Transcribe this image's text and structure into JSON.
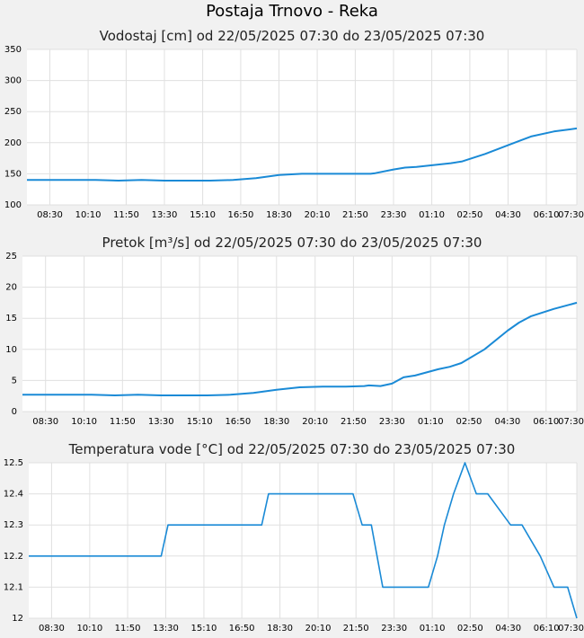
{
  "page": {
    "title": "Postaja Trnovo - Reka"
  },
  "x_ticks": [
    "08:30",
    "10:10",
    "11:50",
    "13:30",
    "15:10",
    "16:50",
    "18:30",
    "20:10",
    "21:50",
    "23:30",
    "01:10",
    "02:50",
    "04:30",
    "06:10",
    "07:30"
  ],
  "colors": {
    "line": "#1a8ad6",
    "grid": "#e0e0e0",
    "plot_bg": "#ffffff",
    "page_bg": "#f1f1f1"
  },
  "chart_data": [
    {
      "type": "line",
      "title": "Vodostaj [cm] od 22/05/2025 07:30 do 23/05/2025 07:30",
      "x_range": [
        0,
        24
      ],
      "ylim": [
        100,
        350
      ],
      "y_ticks": [
        "100",
        "150",
        "200",
        "250",
        "300",
        "350"
      ],
      "grid": true,
      "series": [
        {
          "x": [
            0,
            3,
            4,
            5,
            6,
            8,
            9,
            10,
            11,
            12,
            13,
            14,
            15,
            15.2,
            16,
            16.5,
            17,
            18,
            18.5,
            19,
            20,
            21,
            21.5,
            22,
            23,
            24
          ],
          "values": [
            140,
            140,
            139,
            140,
            139,
            139,
            140,
            143,
            148,
            150,
            150,
            150,
            150,
            151,
            157,
            160,
            161,
            165,
            167,
            170,
            182,
            196,
            203,
            210,
            218,
            223
          ]
        }
      ]
    },
    {
      "type": "line",
      "title": "Pretok [m³/s] od 22/05/2025 07:30 do 23/05/2025 07:30",
      "x_range": [
        0,
        24
      ],
      "ylim": [
        0,
        25
      ],
      "y_ticks": [
        "0",
        "5",
        "10",
        "15",
        "20",
        "25"
      ],
      "grid": true,
      "series": [
        {
          "x": [
            0,
            3,
            4,
            5,
            6,
            8,
            9,
            10,
            11,
            12,
            13,
            14,
            14.8,
            15,
            15.5,
            16,
            16.5,
            17,
            18,
            18.5,
            19,
            20,
            21,
            21.5,
            22,
            23,
            24
          ],
          "values": [
            2.7,
            2.7,
            2.6,
            2.7,
            2.6,
            2.6,
            2.7,
            3.0,
            3.5,
            3.9,
            4.0,
            4.0,
            4.1,
            4.2,
            4.1,
            4.5,
            5.5,
            5.8,
            6.8,
            7.2,
            7.8,
            10.0,
            13.0,
            14.3,
            15.3,
            16.5,
            17.5
          ]
        }
      ]
    },
    {
      "type": "line",
      "title": "Temperatura vode [°C] od 22/05/2025 07:30 do 23/05/2025 07:30",
      "x_range": [
        0,
        24
      ],
      "ylim": [
        12,
        12.5
      ],
      "y_ticks": [
        "12",
        "12.1",
        "12.2",
        "12.3",
        "12.4",
        "12.5"
      ],
      "grid": true,
      "series": [
        {
          "x": [
            0,
            5.8,
            6.1,
            10.2,
            10.5,
            14.2,
            14.6,
            15.0,
            15.5,
            17.5,
            17.9,
            18.2,
            18.6,
            19.1,
            19.6,
            20.1,
            21.1,
            21.6,
            22.4,
            23.0,
            23.6,
            24
          ],
          "values": [
            12.2,
            12.2,
            12.3,
            12.3,
            12.4,
            12.4,
            12.3,
            12.3,
            12.1,
            12.1,
            12.2,
            12.3,
            12.4,
            12.5,
            12.4,
            12.4,
            12.3,
            12.3,
            12.2,
            12.1,
            12.1,
            12.0
          ]
        }
      ]
    }
  ]
}
